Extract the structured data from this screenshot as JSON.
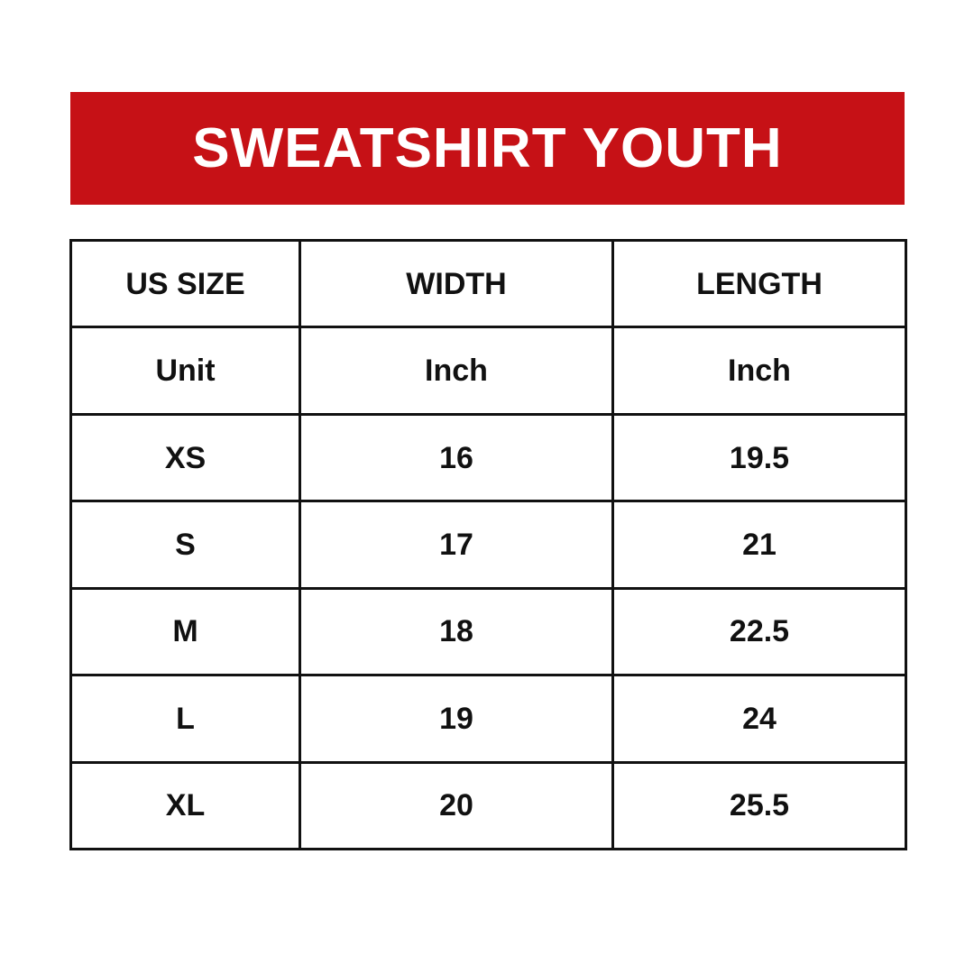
{
  "title": "SWEATSHIRT YOUTH",
  "colors": {
    "banner": "#c61116",
    "banner_text": "#ffffff",
    "table_text": "#111111",
    "border": "#111111",
    "background": "#ffffff"
  },
  "table": {
    "headers": [
      "US SIZE",
      "WIDTH",
      "LENGTH"
    ],
    "units": [
      "Unit",
      "Inch",
      "Inch"
    ],
    "rows": [
      [
        "XS",
        "16",
        "19.5"
      ],
      [
        "S",
        "17",
        "21"
      ],
      [
        "M",
        "18",
        "22.5"
      ],
      [
        "L",
        "19",
        "24"
      ],
      [
        "XL",
        "20",
        "25.5"
      ]
    ]
  }
}
